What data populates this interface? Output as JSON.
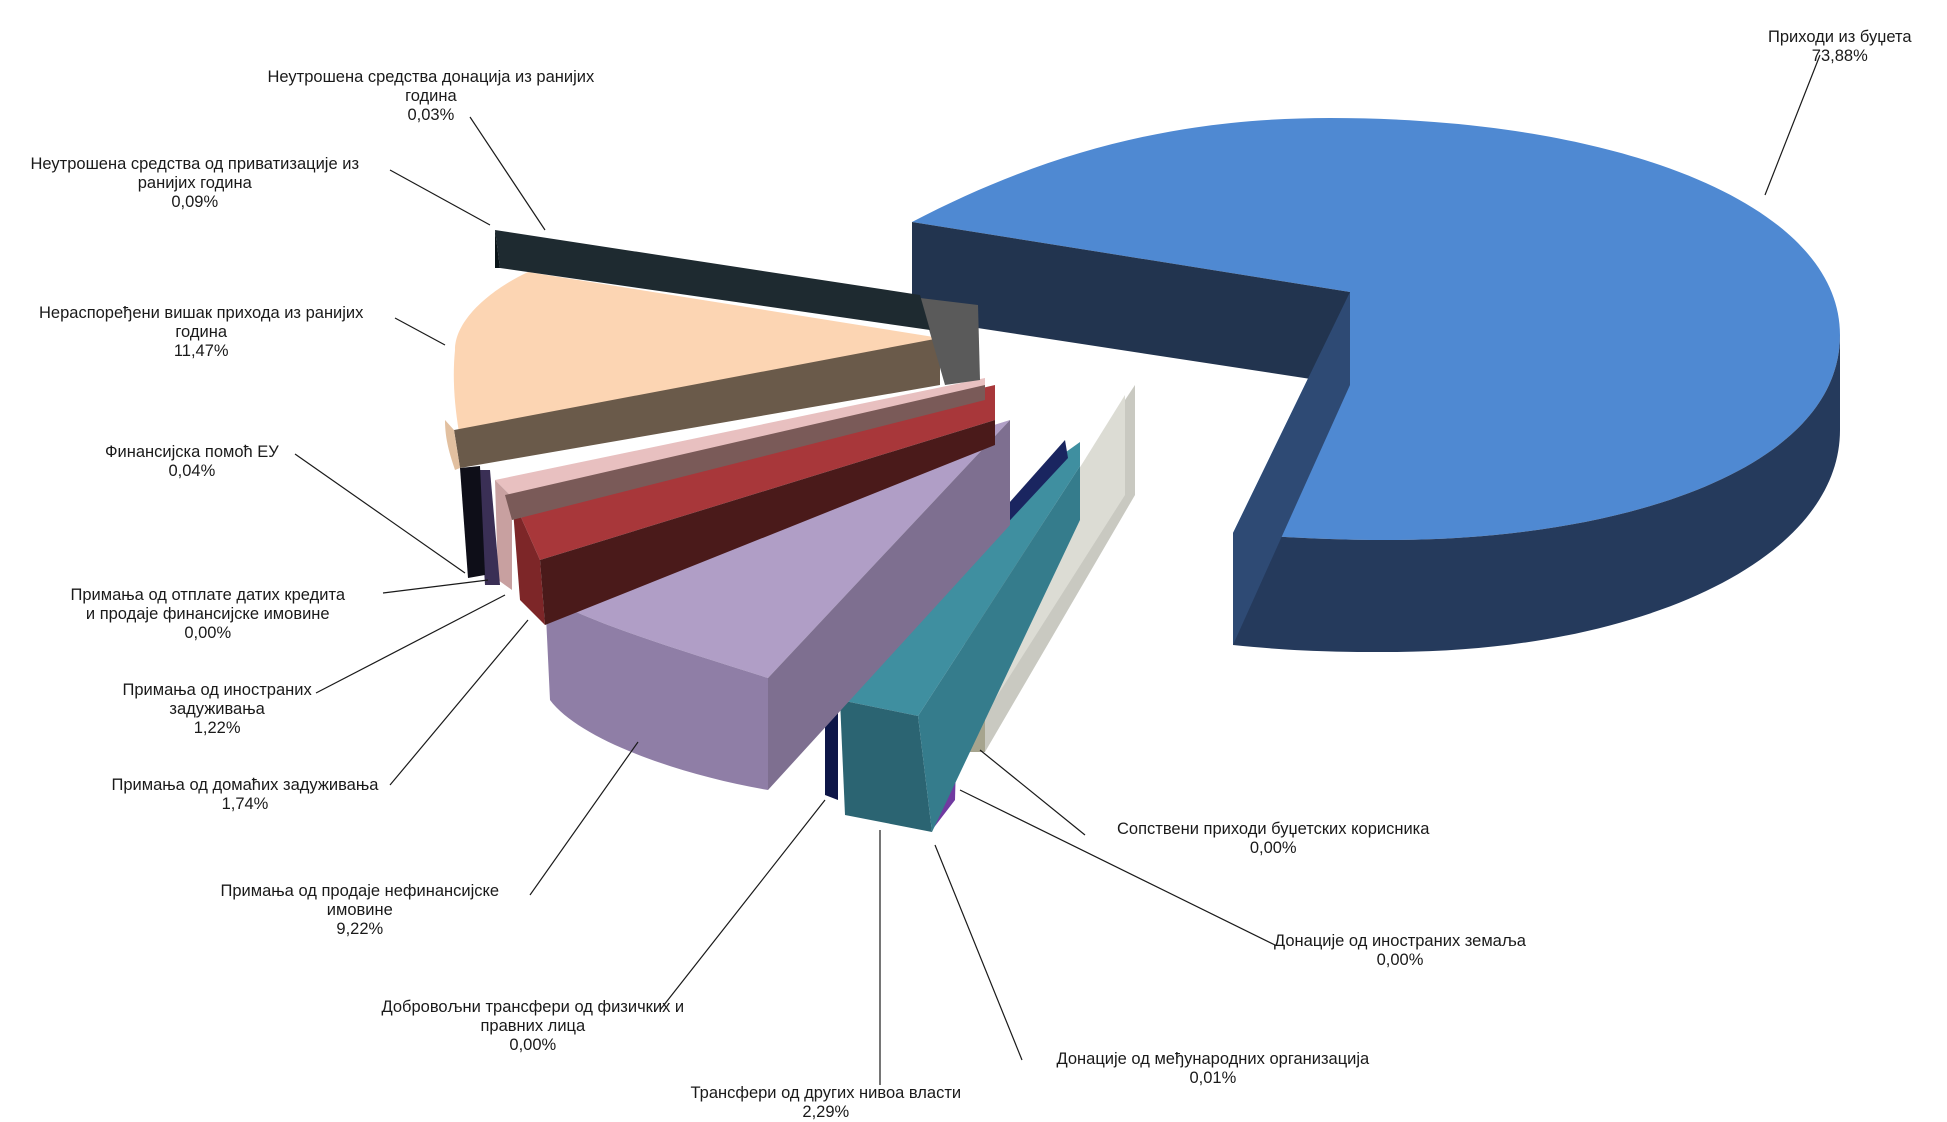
{
  "chart_data": {
    "type": "pie",
    "title": "",
    "style": "3d-exploded",
    "series": [
      {
        "name": "Приходи из буџета",
        "label_lines": [
          "Приходи из буџета"
        ],
        "value": 73.88,
        "display": "73,88%",
        "color": "#4f89d2",
        "side": "#253a5c"
      },
      {
        "name": "Сопствени приходи буџетских корисника",
        "label_lines": [
          "Сопствени приходи буџетских корисника"
        ],
        "value": 0.0,
        "display": "0,00%",
        "color": "#c8c8c0",
        "side": "#a09d86"
      },
      {
        "name": "Донације од иностраних земаља",
        "label_lines": [
          "Донације од иностраних земаља"
        ],
        "value": 0.0,
        "display": "0,00%",
        "color": "#d8d8d0",
        "side": "#b8b8b0"
      },
      {
        "name": "Донације од међународних организација",
        "label_lines": [
          "Донације од међународних организација"
        ],
        "value": 0.01,
        "display": "0,01%",
        "color": "#7a40a8",
        "side": "#5d2c86"
      },
      {
        "name": "Трансфери од других нивоа власти",
        "label_lines": [
          "Трансфери од других нивоа власти"
        ],
        "value": 2.29,
        "display": "2,29%",
        "color": "#3c8c9e",
        "side": "#2a6170"
      },
      {
        "name": "Добровољни трансфери од физичких и правних лица",
        "label_lines": [
          "Добровољни трансфери од физичких и",
          "правних лица"
        ],
        "value": 0.0,
        "display": "0,00%",
        "color": "#1f2a6b",
        "side": "#0f1848"
      },
      {
        "name": "Примања од продаје нефинансијске имовине",
        "label_lines": [
          "Примања од продаје нефинансијске",
          "имовине"
        ],
        "value": 9.22,
        "display": "9,22%",
        "color": "#b09ec6",
        "side": "#7e6f90"
      },
      {
        "name": "Примања од домаћих задуживања",
        "label_lines": [
          "Примања од домаћих задуживања"
        ],
        "value": 1.74,
        "display": "1,74%",
        "color": "#a8373a",
        "side": "#4a1a1a"
      },
      {
        "name": "Примања од иностраних задуживања",
        "label_lines": [
          "Примања од иностраних",
          "задуживања"
        ],
        "value": 1.22,
        "display": "1,22%",
        "color": "#e8c0c0",
        "side": "#7a5a58"
      },
      {
        "name": "Примања од отплате датих кредита и продаје финансијске имовине",
        "label_lines": [
          "Примања од отплате датих кредита",
          "и продаје финансијске имовине"
        ],
        "value": 0.0,
        "display": "0,00%",
        "color": "#6a5a8a",
        "side": "#3a2f55"
      },
      {
        "name": "Финансијска помоћ ЕУ",
        "label_lines": [
          "Финансијска помоћ ЕУ"
        ],
        "value": 0.04,
        "display": "0,04%",
        "color": "#1a1a2a",
        "side": "#0a0a14"
      },
      {
        "name": "Нераспоређени вишак прихода из ранијих година",
        "label_lines": [
          "Нераспоређени вишак прихода из ранијих",
          "година"
        ],
        "value": 11.47,
        "display": "11,47%",
        "color": "#fcd5b3",
        "side": "#6a5a4a"
      },
      {
        "name": "Неутрошена средства од приватизације из ранијих година",
        "label_lines": [
          "Неутрошена средства од приватизације из",
          "ранијих година"
        ],
        "value": 0.09,
        "display": "0,09%",
        "color": "#5a5a5a",
        "side": "#3a3a3a"
      },
      {
        "name": "Неутрошена средства донација из ранијих година",
        "label_lines": [
          "Неутрошена средства донација из ранијих",
          "година"
        ],
        "value": 0.03,
        "display": "0,03%",
        "color": "#1e2a30",
        "side": "#0a1418"
      }
    ]
  }
}
